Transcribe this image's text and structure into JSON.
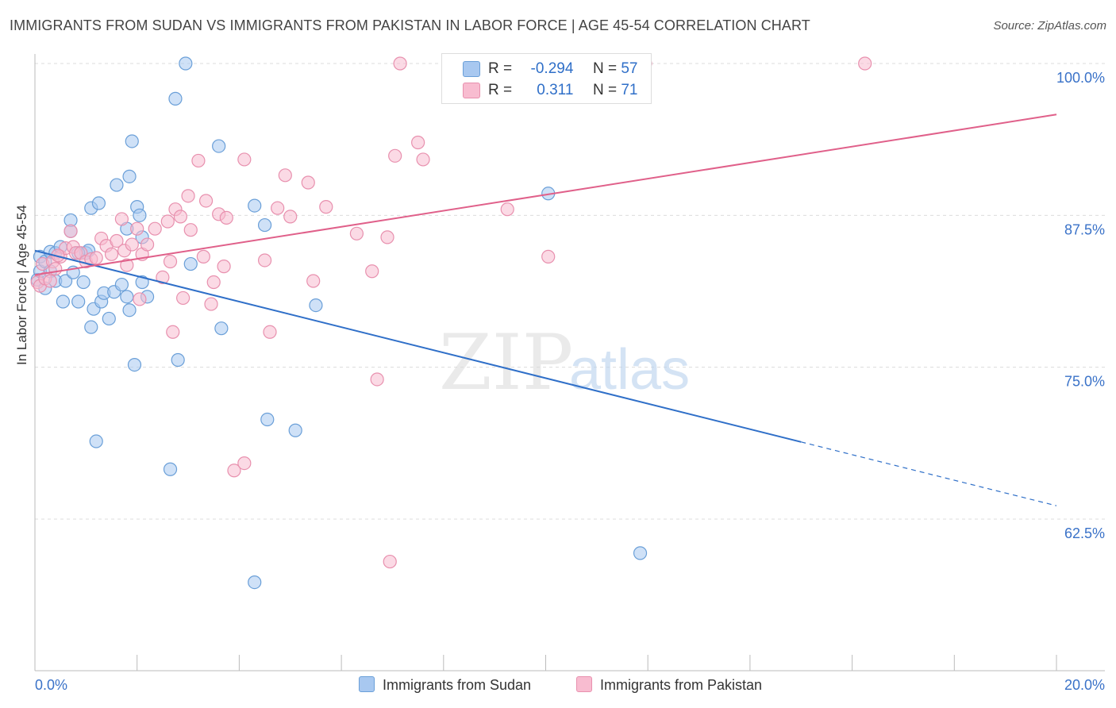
{
  "title": "IMMIGRANTS FROM SUDAN VS IMMIGRANTS FROM PAKISTAN IN LABOR FORCE | AGE 45-54 CORRELATION CHART",
  "source": "Source: ZipAtlas.com",
  "watermark": {
    "zip": "ZIP",
    "atlas": "atlas"
  },
  "legend": {
    "sudan": {
      "r_label": "R =",
      "r_value": "-0.294",
      "n_label": "N =",
      "n_value": "57"
    },
    "pakistan": {
      "r_label": "R =",
      "r_value": "0.311",
      "n_label": "N =",
      "n_value": "71"
    }
  },
  "colors": {
    "sudan_fill": "#a8c8f0",
    "sudan_stroke": "#6a9fd8",
    "sudan_line": "#2f6fc8",
    "pakistan_fill": "#f8bcd0",
    "pakistan_stroke": "#e890ae",
    "pakistan_line": "#e0608a",
    "axis_tick_label": "#3a72c8"
  },
  "chart_data": {
    "type": "scatter",
    "title": "IMMIGRANTS FROM SUDAN VS IMMIGRANTS FROM PAKISTAN IN LABOR FORCE | AGE 45-54 CORRELATION CHART",
    "xlabel": "",
    "ylabel": "In Labor Force | Age 45-54",
    "xlim": [
      0,
      20
    ],
    "ylim": [
      50,
      100
    ],
    "x_tick_labels": [
      "0.0%",
      "20.0%"
    ],
    "y_ticks": [
      62.5,
      75.0,
      87.5,
      100.0
    ],
    "y_tick_labels": [
      "62.5%",
      "75.0%",
      "87.5%",
      "100.0%"
    ],
    "grid": true,
    "legend_position": "top-center",
    "series": [
      {
        "name": "Immigrants from Sudan",
        "trend": {
          "x0": 0,
          "y0": 84.6,
          "x1": 20,
          "y1": 63.6,
          "solid_until_x": 15
        },
        "points": [
          [
            0.05,
            82.2
          ],
          [
            0.1,
            82.9
          ],
          [
            0.1,
            84.1
          ],
          [
            0.2,
            81.5
          ],
          [
            0.2,
            83.7
          ],
          [
            0.3,
            84.5
          ],
          [
            0.3,
            82.9
          ],
          [
            0.4,
            82.1
          ],
          [
            0.4,
            84.4
          ],
          [
            0.5,
            84.9
          ],
          [
            0.55,
            80.4
          ],
          [
            0.6,
            82.1
          ],
          [
            0.7,
            86.2
          ],
          [
            0.7,
            87.1
          ],
          [
            0.75,
            82.8
          ],
          [
            0.85,
            80.4
          ],
          [
            0.95,
            82.0
          ],
          [
            1.0,
            84.4
          ],
          [
            1.05,
            84.6
          ],
          [
            1.1,
            88.1
          ],
          [
            1.1,
            78.3
          ],
          [
            1.15,
            79.8
          ],
          [
            1.25,
            88.5
          ],
          [
            1.3,
            80.4
          ],
          [
            1.35,
            81.1
          ],
          [
            1.45,
            79.0
          ],
          [
            1.55,
            81.2
          ],
          [
            1.6,
            90.0
          ],
          [
            1.7,
            81.8
          ],
          [
            1.8,
            86.4
          ],
          [
            1.8,
            80.8
          ],
          [
            1.85,
            90.7
          ],
          [
            1.85,
            79.7
          ],
          [
            1.9,
            93.6
          ],
          [
            1.95,
            75.2
          ],
          [
            2.0,
            88.2
          ],
          [
            2.05,
            87.5
          ],
          [
            2.1,
            82.0
          ],
          [
            2.1,
            85.7
          ],
          [
            2.2,
            80.8
          ],
          [
            2.75,
            97.1
          ],
          [
            2.8,
            75.6
          ],
          [
            2.95,
            100.0
          ],
          [
            3.05,
            83.5
          ],
          [
            3.6,
            93.2
          ],
          [
            3.65,
            78.2
          ],
          [
            4.3,
            88.3
          ],
          [
            4.5,
            86.7
          ],
          [
            4.55,
            70.7
          ],
          [
            5.1,
            69.8
          ],
          [
            5.5,
            80.1
          ],
          [
            1.2,
            68.9
          ],
          [
            2.65,
            66.6
          ],
          [
            4.3,
            57.3
          ],
          [
            10.05,
            89.3
          ],
          [
            11.85,
            59.7
          ],
          [
            0.85,
            84.4
          ]
        ]
      },
      {
        "name": "Immigrants from Pakistan",
        "trend": {
          "x0": 0,
          "y0": 82.6,
          "x1": 20,
          "y1": 95.8
        },
        "points": [
          [
            0.05,
            82.0
          ],
          [
            0.1,
            81.7
          ],
          [
            0.15,
            83.5
          ],
          [
            0.2,
            82.3
          ],
          [
            0.3,
            82.1
          ],
          [
            0.35,
            83.7
          ],
          [
            0.4,
            83.1
          ],
          [
            0.5,
            84.1
          ],
          [
            0.6,
            84.8
          ],
          [
            0.7,
            86.2
          ],
          [
            0.75,
            84.9
          ],
          [
            0.8,
            84.4
          ],
          [
            0.9,
            84.4
          ],
          [
            1.0,
            83.7
          ],
          [
            1.1,
            83.9
          ],
          [
            1.2,
            84.0
          ],
          [
            1.3,
            85.6
          ],
          [
            1.4,
            85.0
          ],
          [
            1.5,
            84.3
          ],
          [
            1.6,
            85.4
          ],
          [
            1.7,
            87.2
          ],
          [
            1.75,
            84.6
          ],
          [
            1.8,
            83.4
          ],
          [
            1.9,
            85.1
          ],
          [
            2.0,
            86.4
          ],
          [
            2.05,
            80.6
          ],
          [
            2.1,
            84.3
          ],
          [
            2.2,
            85.1
          ],
          [
            2.35,
            86.4
          ],
          [
            2.5,
            82.4
          ],
          [
            2.6,
            87.0
          ],
          [
            2.65,
            83.7
          ],
          [
            2.7,
            77.9
          ],
          [
            2.75,
            88.0
          ],
          [
            2.85,
            87.4
          ],
          [
            2.9,
            80.7
          ],
          [
            3.0,
            89.1
          ],
          [
            3.05,
            86.3
          ],
          [
            3.2,
            92.0
          ],
          [
            3.3,
            84.1
          ],
          [
            3.35,
            88.7
          ],
          [
            3.45,
            80.2
          ],
          [
            3.5,
            82.0
          ],
          [
            3.6,
            87.6
          ],
          [
            3.7,
            83.3
          ],
          [
            3.75,
            87.3
          ],
          [
            3.9,
            66.5
          ],
          [
            4.1,
            67.1
          ],
          [
            4.1,
            92.1
          ],
          [
            4.5,
            83.8
          ],
          [
            4.6,
            77.9
          ],
          [
            4.75,
            88.1
          ],
          [
            4.9,
            90.8
          ],
          [
            5.0,
            87.4
          ],
          [
            5.35,
            90.2
          ],
          [
            5.45,
            82.1
          ],
          [
            5.7,
            88.2
          ],
          [
            6.3,
            86.0
          ],
          [
            6.6,
            82.9
          ],
          [
            6.7,
            74.0
          ],
          [
            6.9,
            85.7
          ],
          [
            6.95,
            59.0
          ],
          [
            7.05,
            92.4
          ],
          [
            7.15,
            100.0
          ],
          [
            7.5,
            93.5
          ],
          [
            7.6,
            92.1
          ],
          [
            9.25,
            88.0
          ],
          [
            10.05,
            84.1
          ],
          [
            11.95,
            100.0
          ],
          [
            16.25,
            100.0
          ],
          [
            0.45,
            84.2
          ]
        ]
      }
    ]
  },
  "bottom_legend": [
    "Immigrants from Sudan",
    "Immigrants from Pakistan"
  ]
}
